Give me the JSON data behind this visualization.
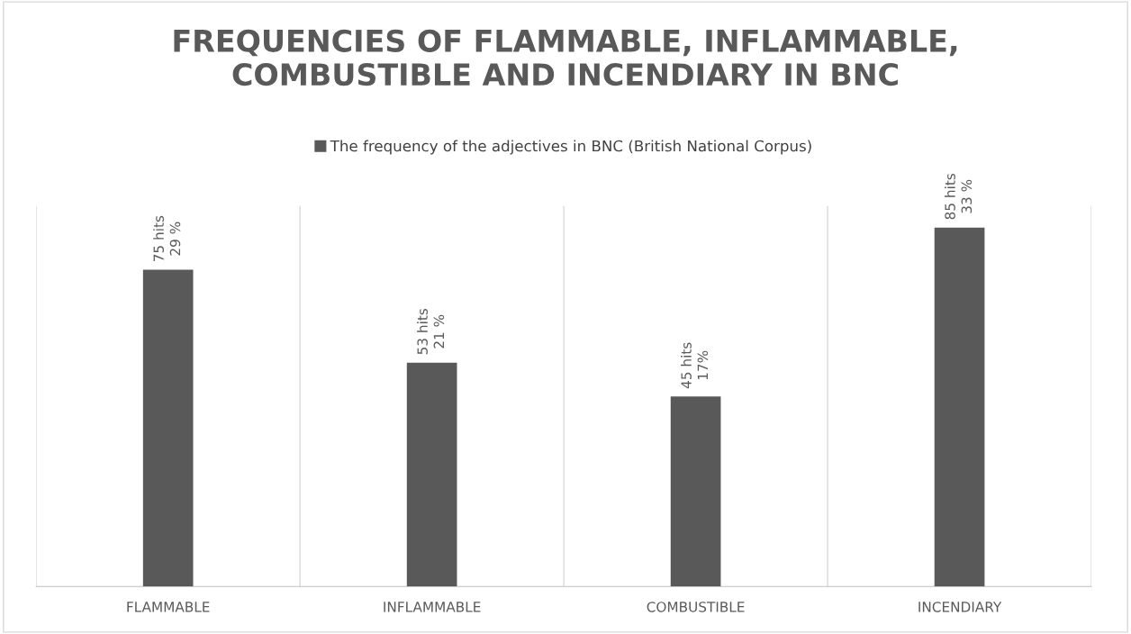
{
  "chart_data": {
    "type": "bar",
    "title": "FREQUENCIES OF FLAMMABLE, INFLAMMABLE, COMBUSTIBLE AND INCENDIARY IN BNC",
    "categories": [
      "FLAMMABLE",
      "INFLAMMABLE",
      "COMBUSTIBLE",
      "INCENDIARY"
    ],
    "series": [
      {
        "name": "The frequency of the adjectives in BNC (British National Corpus)",
        "color": "#595959",
        "values": [
          75,
          53,
          45,
          85
        ],
        "value_labels": [
          "75 hits\n29 %",
          "53 hits\n21 %",
          "45 hits\n17%",
          "85 hits\n33 %"
        ]
      }
    ],
    "grid": "x",
    "legend": "top"
  }
}
